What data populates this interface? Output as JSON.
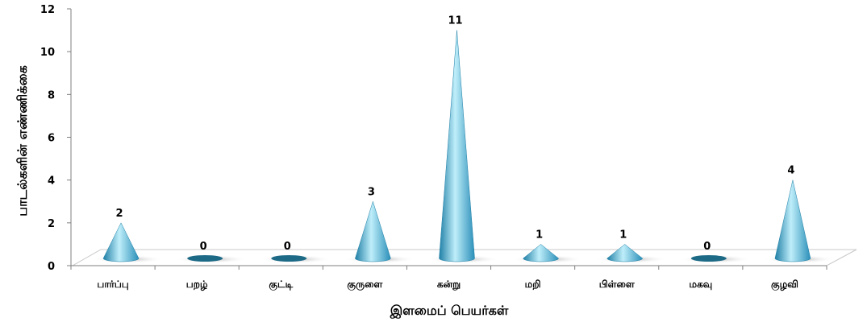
{
  "chart_data": {
    "type": "bar",
    "bar_shape": "cone",
    "categories": [
      "பார்ப்பு",
      "பறழ்",
      "குட்டி",
      "குருளை",
      "கன்று",
      "மறி",
      "பிள்ளை",
      "மகவு",
      "குழவி"
    ],
    "values": [
      2,
      0,
      0,
      3,
      11,
      1,
      1,
      0,
      4
    ],
    "xlabel": "இளமைப் பெயர்கள்",
    "ylabel": "பாடல்களின் எண்ணிக்கை",
    "ylim": [
      0,
      12
    ],
    "yticks": [
      0,
      2,
      4,
      6,
      8,
      10,
      12
    ],
    "grid": false,
    "data_labels": true,
    "colors": {
      "cone_light": "#bfeefa",
      "cone_mid": "#4fc3e3",
      "cone_dark": "#1f7fa6",
      "base_dark": "#1d6a86",
      "floor": "#ffffff",
      "floor_border": "#c8c8c8",
      "axis": "#7f7f7f"
    }
  }
}
